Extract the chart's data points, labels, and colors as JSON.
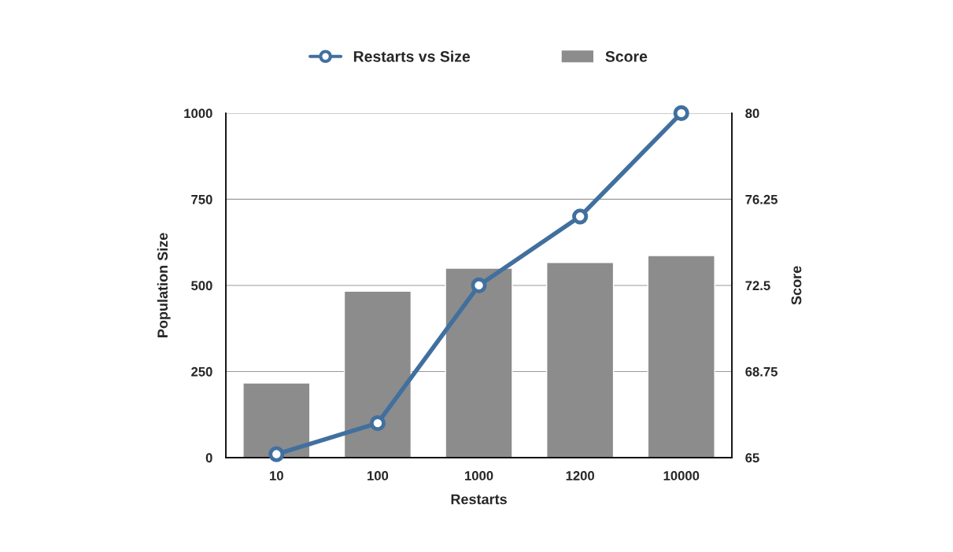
{
  "chart_data": {
    "type": "bar",
    "categories": [
      "10",
      "100",
      "1000",
      "1200",
      "10000"
    ],
    "xlabel": "Restarts",
    "ylabel": "Population Size",
    "y2label": "Score",
    "series": [
      {
        "name": "Restarts vs Size",
        "type": "line",
        "color": "#41709f",
        "marker": "circle",
        "values": [
          10,
          100,
          500,
          700,
          1000
        ]
      },
      {
        "name": "Score",
        "axis": "y2",
        "color": "#8c8c8c",
        "values": [
          68.25,
          72.25,
          73.25,
          73.5,
          73.8
        ]
      }
    ],
    "ylim": [
      0,
      1000
    ],
    "yticks": [
      0,
      250,
      500,
      750,
      1000
    ],
    "y2lim": [
      65,
      80
    ],
    "y2ticks": [
      65,
      68.75,
      72.5,
      76.25,
      80
    ],
    "grid": "y",
    "legend": "top"
  }
}
